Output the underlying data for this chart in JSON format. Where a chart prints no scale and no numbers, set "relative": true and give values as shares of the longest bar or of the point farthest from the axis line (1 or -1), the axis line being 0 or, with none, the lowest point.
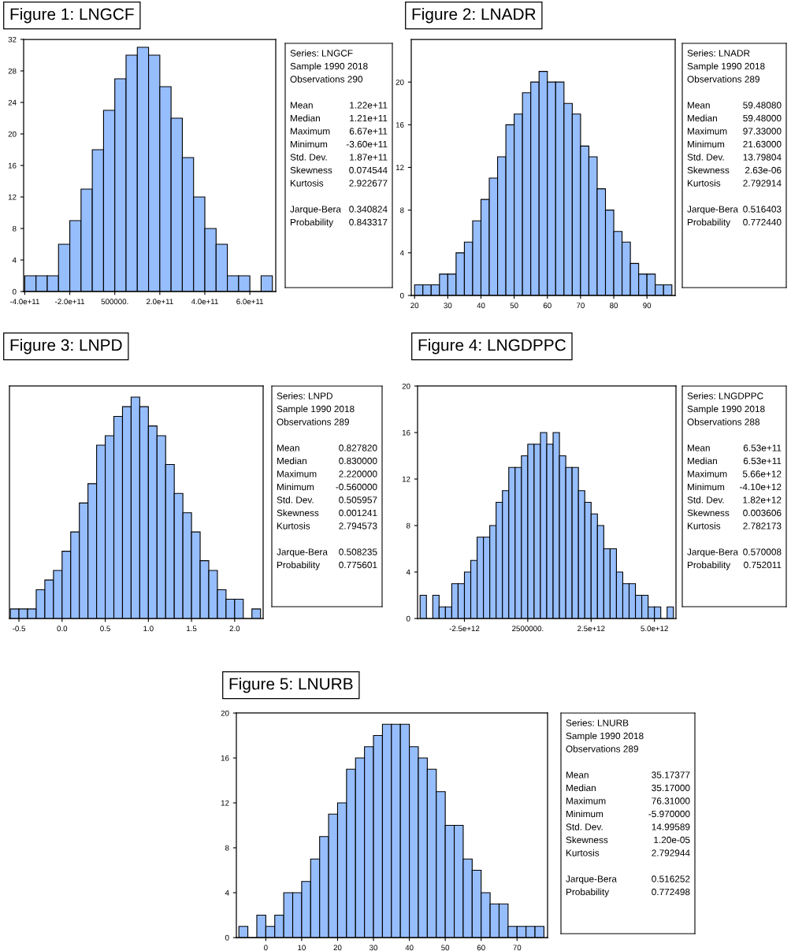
{
  "chart_data": [
    {
      "type": "histogram",
      "title": "Figure 1: LNGCF",
      "color": "#96bdfc",
      "bins": [
        -400000000000.0,
        -350000000000.0,
        -300000000000.0,
        -250000000000.0,
        -200000000000.0,
        -150000000000.0,
        -100000000000.0,
        -50000000000.0,
        0,
        50000000000.0,
        100000000000.0,
        150000000000.0,
        200000000000.0,
        250000000000.0,
        300000000000.0,
        350000000000.0,
        400000000000.0,
        450000000000.0,
        500000000000.0,
        550000000000.0,
        600000000000.0,
        650000000000.0,
        700000000000.0
      ],
      "values": [
        2,
        2,
        2,
        6,
        9,
        13,
        18,
        23,
        27,
        30,
        31,
        30,
        26,
        22,
        17,
        12,
        8,
        6,
        2,
        2,
        0,
        2
      ],
      "xlim": [
        -405000000000.0,
        715000000000.0
      ],
      "xticks": [
        {
          "value": -400000000000.0,
          "label": "-4.0e+11"
        },
        {
          "value": -200000000000.0,
          "label": "-2.0e+11"
        },
        {
          "value": 500000,
          "label": "500000."
        },
        {
          "value": 200000000000.0,
          "label": "2.0e+11"
        },
        {
          "value": 400000000000.0,
          "label": "4.0e+11"
        },
        {
          "value": 600000000000.0,
          "label": "6.0e+11"
        }
      ],
      "ylim": [
        0,
        32
      ],
      "yticks": [
        0,
        4,
        8,
        12,
        16,
        20,
        24,
        28,
        32
      ],
      "annotations": [
        "Series: LNGCF",
        "Sample 1990 2018",
        "Observations 290",
        "Mean 1.22e+11",
        "Median 1.21e+11",
        "Maximum 6.67e+11",
        "Minimum -3.60e+11",
        "Std. Dev. 1.87e+11",
        "Skewness 0.074544",
        "Kurtosis 2.922677",
        "Jarque-Bera 0.340824",
        "Probability 0.843317"
      ]
    },
    {
      "type": "histogram",
      "title": "Figure 2: LNADR",
      "color": "#96bdfc",
      "bins": [
        20,
        22.5,
        25,
        27.5,
        30,
        32.5,
        35,
        37.5,
        40,
        42.5,
        45,
        47.5,
        50,
        52.5,
        55,
        57.5,
        60,
        62.5,
        65,
        67.5,
        70,
        72.5,
        75,
        77.5,
        80,
        82.5,
        85,
        87.5,
        90,
        92.5,
        95,
        97.5
      ],
      "values": [
        1,
        1,
        1,
        2,
        2,
        4,
        5,
        7,
        9,
        11,
        13,
        16,
        17,
        19,
        20,
        21,
        20,
        20,
        18,
        17,
        14,
        13,
        10,
        8,
        6,
        5,
        3,
        2,
        2,
        1,
        1
      ],
      "xlim": [
        19,
        98.5
      ],
      "xticks": [
        20,
        30,
        40,
        50,
        60,
        70,
        80,
        90
      ],
      "ylim": [
        0,
        24
      ],
      "yticks": [
        0,
        4,
        8,
        12,
        16,
        20
      ],
      "annotations": [
        "Series: LNADR",
        "Sample 1990 2018",
        "Observations 289",
        "Mean 59.48080",
        "Median 59.48000",
        "Maximum 97.33000",
        "Minimum 21.63000",
        "Std. Dev. 13.79804",
        "Skewness 2.63e-06",
        "Kurtosis 2.792914",
        "Jarque-Bera 0.516403",
        "Probability 0.772440"
      ]
    },
    {
      "type": "bar",
      "title": "Figure 3: LNPD",
      "color": "#96bdfc",
      "relative": true,
      "x": [
        -0.55,
        -0.45,
        -0.35,
        -0.25,
        -0.15,
        -0.05,
        0.05,
        0.15,
        0.25,
        0.35,
        0.45,
        0.55,
        0.65,
        0.75,
        0.85,
        0.95,
        1.05,
        1.15,
        1.25,
        1.35,
        1.45,
        1.55,
        1.65,
        1.75,
        1.85,
        1.95,
        2.05,
        2.15,
        2.25
      ],
      "values": [
        0.043,
        0.043,
        0.043,
        0.13,
        0.174,
        0.217,
        0.304,
        0.391,
        0.522,
        0.609,
        0.783,
        0.826,
        0.913,
        0.957,
        1,
        0.957,
        0.87,
        0.826,
        0.696,
        0.565,
        0.478,
        0.391,
        0.261,
        0.217,
        0.13,
        0.087,
        0.087,
        0,
        0.043
      ],
      "xlim": [
        -0.61,
        2.33
      ],
      "xticks": [
        {
          "value": -0.5,
          "label": "-0.5"
        },
        {
          "value": 0.0,
          "label": "0.0"
        },
        {
          "value": 0.5,
          "label": "0.5"
        },
        {
          "value": 1.0,
          "label": "1.0"
        },
        {
          "value": 1.5,
          "label": "1.5"
        },
        {
          "value": 2.0,
          "label": "2.0"
        }
      ],
      "annotations": [
        "Series: LNPD",
        "Sample 1990 2018",
        "Observations 289",
        "Mean 0.827820",
        "Median 0.830000",
        "Maximum 2.220000",
        "Minimum -0.560000",
        "Std. Dev. 0.505957",
        "Skewness 0.001241",
        "Kurtosis 2.794573",
        "Jarque-Bera 0.508235",
        "Probability 0.775601"
      ]
    },
    {
      "type": "histogram",
      "title": "Figure 4: LNGDPPC",
      "color": "#96bdfc",
      "bins": [
        -4250000000000.0,
        -4000000000000.0,
        -3750000000000.0,
        -3500000000000.0,
        -3250000000000.0,
        -3000000000000.0,
        -2750000000000.0,
        -2500000000000.0,
        -2250000000000.0,
        -2000000000000.0,
        -1750000000000.0,
        -1500000000000.0,
        -1250000000000.0,
        -1000000000000.0,
        -750000000000.0,
        -500000000000.0,
        -250000000000.0,
        0,
        250000000000.0,
        500000000000.0,
        750000000000.0,
        1000000000000.0,
        1250000000000.0,
        1500000000000.0,
        1750000000000.0,
        2000000000000.0,
        2250000000000.0,
        2500000000000.0,
        2750000000000.0,
        3000000000000.0,
        3250000000000.0,
        3500000000000.0,
        3750000000000.0,
        4000000000000.0,
        4250000000000.0,
        4500000000000.0,
        4750000000000.0,
        5000000000000.0,
        5250000000000.0,
        5500000000000.0,
        5750000000000.0
      ],
      "values": [
        2,
        0,
        2,
        1,
        1,
        3,
        3,
        4,
        5,
        7,
        7,
        8,
        10,
        11,
        13,
        13,
        14,
        15,
        15,
        16,
        15,
        16,
        14,
        13,
        13,
        11,
        10,
        9,
        8,
        6,
        6,
        4,
        3,
        3,
        2,
        2,
        1,
        1,
        0,
        1
      ],
      "xlim": [
        -4350000000000.0,
        5850000000000.0
      ],
      "xticks": [
        {
          "value": -2500000000000.0,
          "label": "-2.5e+12"
        },
        {
          "value": 2500000,
          "label": "2500000."
        },
        {
          "value": 2500000000000.0,
          "label": "2.5e+12"
        },
        {
          "value": 5000000000000.0,
          "label": "5.0e+12"
        }
      ],
      "ylim": [
        0,
        20
      ],
      "yticks": [
        0,
        4,
        8,
        12,
        16,
        20
      ],
      "annotations": [
        "Series: LNGDPPC",
        "Sample 1990 2018",
        "Observations 288",
        "Mean 6.53e+11",
        "Median 6.53e+11",
        "Maximum 5.66e+12",
        "Minimum -4.10e+12",
        "Std. Dev. 1.82e+12",
        "Skewness 0.003606",
        "Kurtosis 2.782173",
        "Jarque-Bera 0.570008",
        "Probability 0.752011"
      ]
    },
    {
      "type": "histogram",
      "title": "Figure 5: LNURB",
      "color": "#96bdfc",
      "bins": [
        -7.5,
        -5,
        -2.5,
        0,
        2.5,
        5,
        7.5,
        10,
        12.5,
        15,
        17.5,
        20,
        22.5,
        25,
        27.5,
        30,
        32.5,
        35,
        37.5,
        40,
        42.5,
        45,
        47.5,
        50,
        52.5,
        55,
        57.5,
        60,
        62.5,
        65,
        67.5,
        70,
        72.5,
        75,
        77.5
      ],
      "values": [
        1,
        0,
        2,
        1,
        2,
        4,
        4,
        5,
        7,
        9,
        11,
        12,
        15,
        16,
        17,
        18,
        19,
        19,
        19,
        17,
        16,
        15,
        13,
        10,
        10,
        7,
        6,
        4,
        3,
        3,
        1,
        1,
        1,
        1
      ],
      "xlim": [
        -8.2,
        78.5
      ],
      "xticks": [
        0,
        10,
        20,
        30,
        40,
        50,
        60,
        70
      ],
      "ylim": [
        0,
        20
      ],
      "yticks": [
        0,
        4,
        8,
        12,
        16,
        20
      ],
      "annotations": [
        "Series: LNURB",
        "Sample 1990 2018",
        "Observations 289",
        "Mean 35.17377",
        "Median 35.17000",
        "Maximum 76.31000",
        "Minimum -5.970000",
        "Std. Dev. 14.99589",
        "Skewness 1.20e-05",
        "Kurtosis 2.792944",
        "Jarque-Bera 0.516252",
        "Probability 0.772498"
      ]
    }
  ]
}
